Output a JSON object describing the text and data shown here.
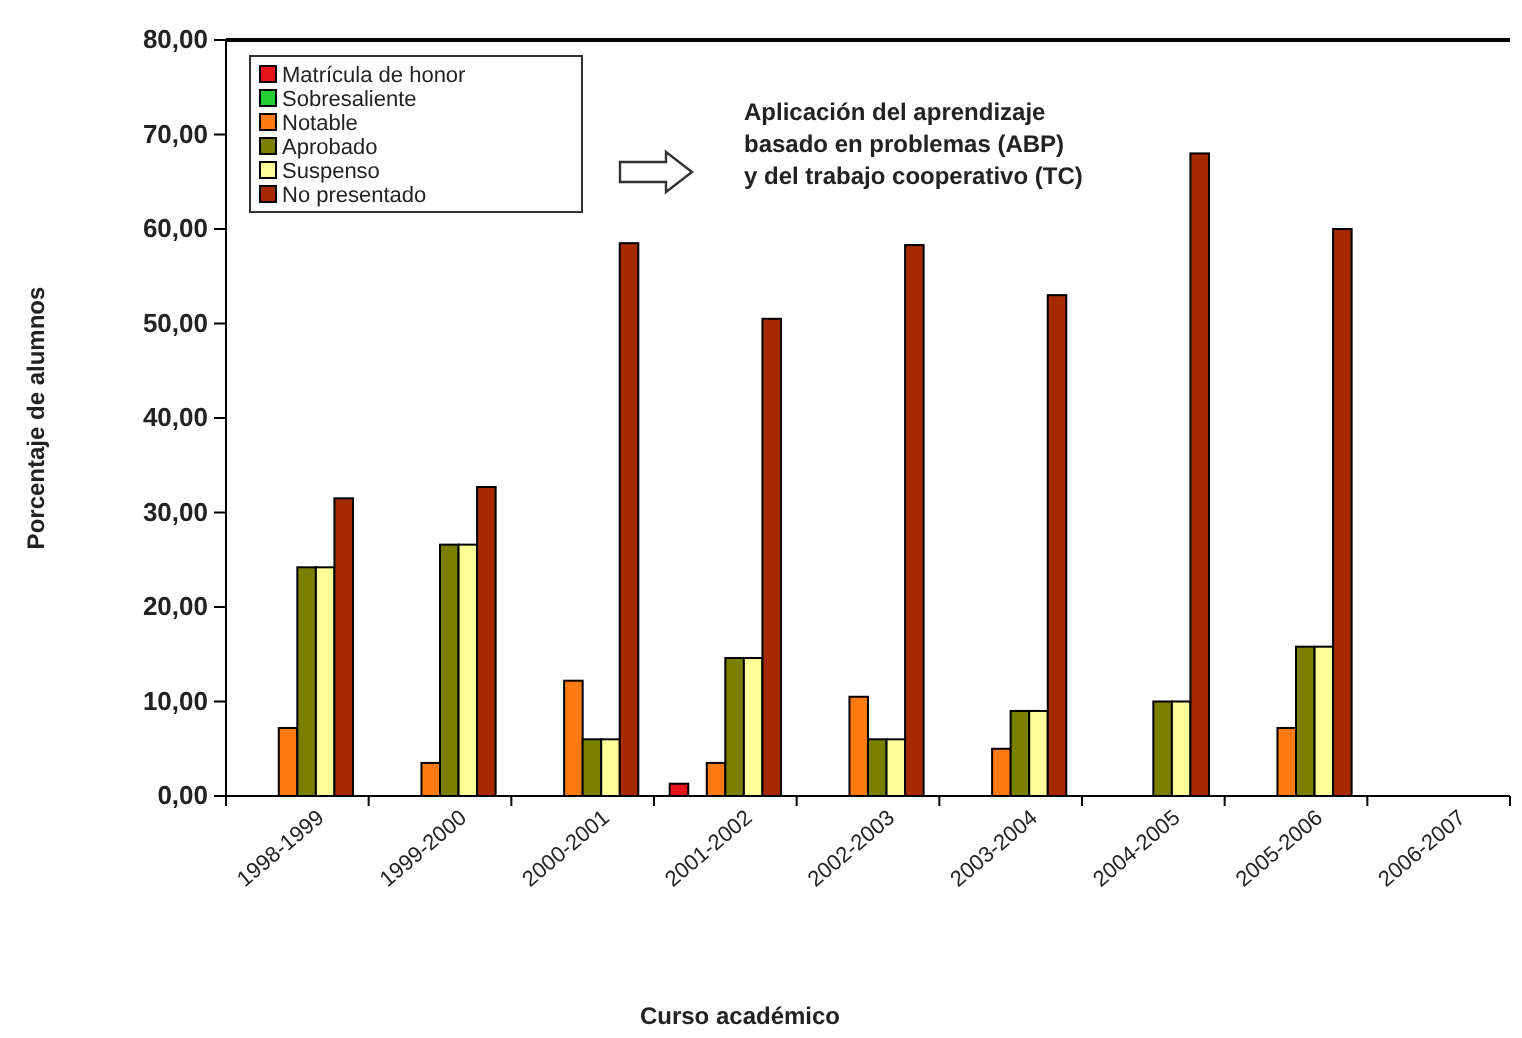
{
  "chart_data": {
    "type": "bar",
    "xlabel": "Curso académico",
    "ylabel": "Porcentaje de alumnos",
    "categories": [
      "1998-1999",
      "1999-2000",
      "2000-2001",
      "2001-2002",
      "2002-2003",
      "2003-2004",
      "2004-2005",
      "2005-2006",
      "2006-2007"
    ],
    "series": [
      {
        "name": "Matrícula de honor",
        "color": "#e8141c",
        "values": [
          null,
          null,
          null,
          1.3,
          null,
          null,
          null,
          null,
          null
        ]
      },
      {
        "name": "Sobresaliente",
        "color": "#22cc33",
        "values": [
          null,
          null,
          null,
          null,
          null,
          null,
          null,
          null,
          null
        ]
      },
      {
        "name": "Notable",
        "color": "#ff7a10",
        "values": [
          7.2,
          3.5,
          12.2,
          3.5,
          10.5,
          5,
          null,
          7.2,
          null
        ]
      },
      {
        "name": "Aprobado",
        "color": "#7a7f00",
        "values": [
          24.2,
          26.6,
          6,
          14.6,
          6,
          9,
          10,
          15.8,
          null
        ]
      },
      {
        "name": "Suspenso",
        "color": "#ffff99",
        "values": [
          24.2,
          26.6,
          6,
          14.6,
          6,
          9,
          10,
          15.8,
          null
        ]
      },
      {
        "name": "No presentado",
        "color": "#a52a00",
        "values": [
          31.5,
          32.7,
          58.5,
          50.5,
          58.3,
          53,
          68,
          60,
          null
        ]
      }
    ],
    "ylim": [
      0,
      80
    ],
    "yticks": [
      {
        "value": 0,
        "label": "0,00"
      },
      {
        "value": 10,
        "label": "10,00"
      },
      {
        "value": 20,
        "label": "20,00"
      },
      {
        "value": 30,
        "label": "30,00"
      },
      {
        "value": 40,
        "label": "40,00"
      },
      {
        "value": 50,
        "label": "50,00"
      },
      {
        "value": 60,
        "label": "60,00"
      },
      {
        "value": 70,
        "label": "70,00"
      },
      {
        "value": 80,
        "label": "80,00"
      }
    ],
    "annotations": [
      "Aplicación del aprendizaje\nbasado en problemas (ABP)\ny del trabajo cooperativo (TC)"
    ],
    "legend": "top left",
    "grid": false
  }
}
